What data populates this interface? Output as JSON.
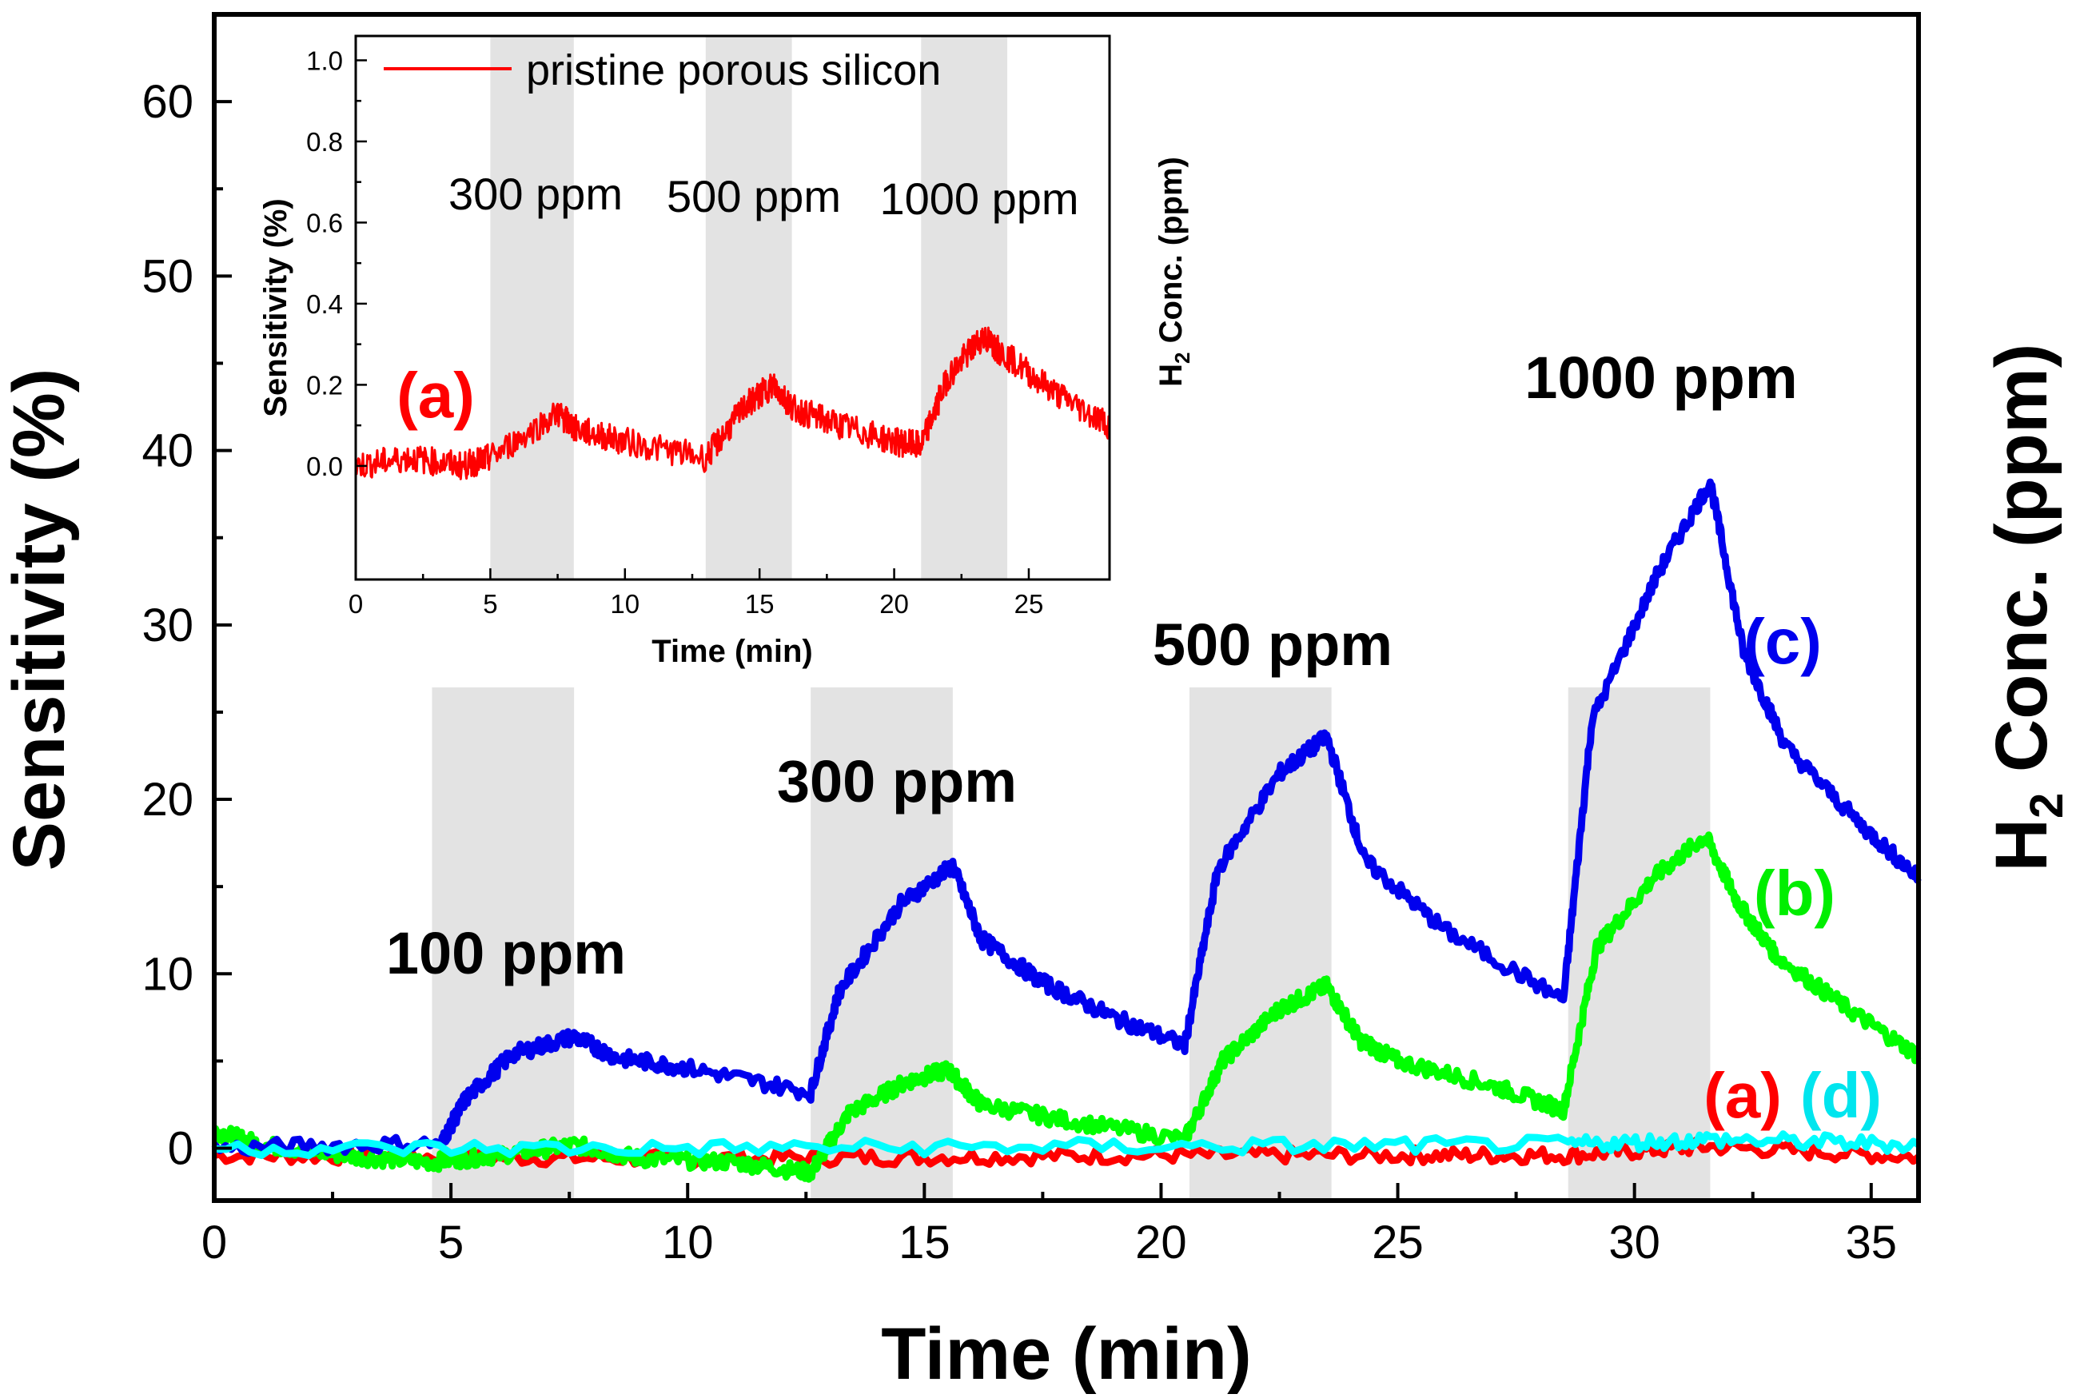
{
  "chart_data": [
    {
      "type": "line",
      "name": "main",
      "xlabel": "Time (min)",
      "ylabel": "Sensitivity (%)",
      "y2label_parts": [
        "H",
        "2",
        " Conc. (ppm)"
      ],
      "xlim": [
        0,
        36
      ],
      "ylim": [
        -3,
        65
      ],
      "xticks": [
        0,
        5,
        10,
        15,
        20,
        25,
        30,
        35
      ],
      "yticks": [
        0,
        10,
        20,
        30,
        40,
        50,
        60
      ],
      "gas_pulses": [
        {
          "start": 4.6,
          "end": 7.6,
          "label": "100 ppm"
        },
        {
          "start": 12.6,
          "end": 15.6,
          "label": "300 ppm"
        },
        {
          "start": 20.6,
          "end": 23.6,
          "label": "500 ppm"
        },
        {
          "start": 28.6,
          "end": 31.6,
          "label": "1000 ppm"
        }
      ],
      "series": [
        {
          "name": "(a)",
          "color": "#ff0000",
          "points": [
            [
              0,
              -0.4
            ],
            [
              5,
              -0.5
            ],
            [
              10,
              -0.6
            ],
            [
              15,
              -0.5
            ],
            [
              20,
              -0.4
            ],
            [
              25,
              -0.4
            ],
            [
              28.6,
              -0.4
            ],
            [
              31.6,
              0.1
            ],
            [
              36,
              -0.5
            ]
          ]
        },
        {
          "name": "(b)",
          "color": "#00ff00",
          "points": [
            [
              0,
              1.0
            ],
            [
              1,
              0.2
            ],
            [
              3,
              -0.5
            ],
            [
              4.6,
              -0.8
            ],
            [
              6,
              -0.4
            ],
            [
              7.6,
              0.2
            ],
            [
              9,
              -0.6
            ],
            [
              11,
              -0.8
            ],
            [
              12.6,
              -1.4
            ],
            [
              13.4,
              2.0
            ],
            [
              14.6,
              3.8
            ],
            [
              15.5,
              4.5
            ],
            [
              16.2,
              2.5
            ],
            [
              18,
              1.6
            ],
            [
              20.5,
              0.5
            ],
            [
              21.3,
              5.0
            ],
            [
              22.5,
              8.0
            ],
            [
              23.5,
              9.3
            ],
            [
              24.2,
              6.2
            ],
            [
              25,
              5.0
            ],
            [
              27,
              3.6
            ],
            [
              28.5,
              2.2
            ],
            [
              29.2,
              11.5
            ],
            [
              30.4,
              15.5
            ],
            [
              31.5,
              17.9
            ],
            [
              32.2,
              14.0
            ],
            [
              33,
              11.0
            ],
            [
              34.5,
              8.0
            ],
            [
              36,
              5.3
            ]
          ]
        },
        {
          "name": "(c)",
          "color": "#0000ee",
          "points": [
            [
              0,
              0.0
            ],
            [
              4.8,
              0.3
            ],
            [
              5.3,
              2.8
            ],
            [
              6.3,
              5.4
            ],
            [
              7.6,
              6.4
            ],
            [
              8.5,
              5.2
            ],
            [
              10,
              4.6
            ],
            [
              12.6,
              3.2
            ],
            [
              13.2,
              9.0
            ],
            [
              14.5,
              14.0
            ],
            [
              15.6,
              16.2
            ],
            [
              16.2,
              12.0
            ],
            [
              17.5,
              9.5
            ],
            [
              19,
              7.5
            ],
            [
              20.5,
              5.9
            ],
            [
              21.2,
              16.0
            ],
            [
              22.5,
              21.5
            ],
            [
              23.5,
              23.6
            ],
            [
              24.3,
              16.5
            ],
            [
              26,
              12.5
            ],
            [
              28.5,
              8.5
            ],
            [
              29.1,
              24.5
            ],
            [
              30.5,
              33.0
            ],
            [
              31.6,
              38.2
            ],
            [
              32.3,
              28.5
            ],
            [
              33.2,
              23.0
            ],
            [
              34.8,
              18.5
            ],
            [
              36,
              15.5
            ]
          ]
        },
        {
          "name": "(d)",
          "color": "#00ffff",
          "points": [
            [
              0,
              0.0
            ],
            [
              10,
              0.0
            ],
            [
              20,
              0.1
            ],
            [
              28.6,
              0.2
            ],
            [
              31.6,
              0.5
            ],
            [
              36,
              0.2
            ]
          ]
        }
      ],
      "annotations": [
        "(a)",
        "(d)",
        "(b)",
        "(c)"
      ]
    },
    {
      "type": "line",
      "name": "inset",
      "xlabel": "Time (min)",
      "ylabel": "Sensitivity (%)",
      "y2label_parts": [
        "H",
        "2",
        " Conc. (ppm)"
      ],
      "xlim": [
        0,
        28
      ],
      "ylim": [
        -0.28,
        1.06
      ],
      "xticks": [
        0,
        5,
        10,
        15,
        20,
        25
      ],
      "yticks": [
        0.0,
        0.2,
        0.4,
        0.6,
        0.8,
        1.0
      ],
      "gas_pulses": [
        {
          "start": 5.0,
          "end": 8.1,
          "label": "300 ppm"
        },
        {
          "start": 13.0,
          "end": 16.2,
          "label": "500 ppm"
        },
        {
          "start": 21.0,
          "end": 24.2,
          "label": "1000 ppm"
        }
      ],
      "series": [
        {
          "name": "pristine porous silicon",
          "color": "#ff0000",
          "points": [
            [
              0,
              0.0
            ],
            [
              2,
              0.02
            ],
            [
              4,
              0.0
            ],
            [
              5,
              0.02
            ],
            [
              7.5,
              0.13
            ],
            [
              8.2,
              0.09
            ],
            [
              10,
              0.06
            ],
            [
              13,
              0.02
            ],
            [
              14.5,
              0.15
            ],
            [
              15.5,
              0.2
            ],
            [
              16.3,
              0.14
            ],
            [
              18,
              0.1
            ],
            [
              20,
              0.06
            ],
            [
              21,
              0.05
            ],
            [
              22,
              0.22
            ],
            [
              23.3,
              0.32
            ],
            [
              24,
              0.28
            ],
            [
              26,
              0.18
            ],
            [
              28,
              0.1
            ]
          ]
        }
      ],
      "panel_label": "(a)"
    }
  ]
}
